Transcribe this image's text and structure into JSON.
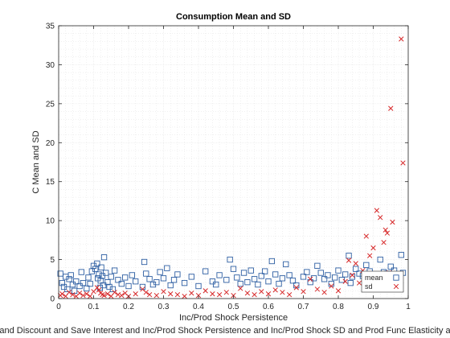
{
  "chart_data": {
    "type": "scatter",
    "title": "Consumption Mean and SD",
    "xlabel": "Inc/Prod Shock Persistence",
    "ylabel": "C Mean and SD",
    "caption": "and Discount and Save Interest and Inc/Prod Shock Persistence and Inc/Prod Shock SD and Prod Func Elasticity a",
    "xlim": [
      0,
      1
    ],
    "ylim": [
      0,
      35
    ],
    "x_ticks": [
      0,
      0.1,
      0.2,
      0.3,
      0.4,
      0.5,
      0.6,
      0.7,
      0.8,
      0.9,
      1
    ],
    "x_tick_labels": [
      "0",
      "0.1",
      "0.2",
      "0.3",
      "0.4",
      "0.5",
      "0.6",
      "0.7",
      "0.8",
      "0.9",
      "1"
    ],
    "y_ticks": [
      0,
      5,
      10,
      15,
      20,
      25,
      30,
      35
    ],
    "y_tick_labels": [
      "0",
      "5",
      "10",
      "15",
      "20",
      "25",
      "30",
      "35"
    ],
    "grid": true,
    "legend_position": "bottom-right",
    "series": [
      {
        "name": "mean",
        "marker": "square",
        "color": "#2e5fa3",
        "x": [
          0.005,
          0.01,
          0.015,
          0.02,
          0.025,
          0.03,
          0.035,
          0.04,
          0.045,
          0.05,
          0.06,
          0.065,
          0.07,
          0.08,
          0.085,
          0.09,
          0.095,
          0.1,
          0.105,
          0.11,
          0.112,
          0.115,
          0.118,
          0.12,
          0.122,
          0.125,
          0.128,
          0.13,
          0.135,
          0.14,
          0.145,
          0.15,
          0.155,
          0.16,
          0.17,
          0.18,
          0.19,
          0.2,
          0.21,
          0.22,
          0.24,
          0.245,
          0.25,
          0.26,
          0.27,
          0.28,
          0.29,
          0.3,
          0.31,
          0.32,
          0.33,
          0.34,
          0.36,
          0.38,
          0.4,
          0.42,
          0.44,
          0.45,
          0.46,
          0.48,
          0.49,
          0.5,
          0.51,
          0.52,
          0.53,
          0.54,
          0.55,
          0.56,
          0.57,
          0.58,
          0.59,
          0.6,
          0.61,
          0.62,
          0.63,
          0.64,
          0.65,
          0.66,
          0.67,
          0.68,
          0.7,
          0.71,
          0.72,
          0.73,
          0.74,
          0.75,
          0.76,
          0.77,
          0.78,
          0.79,
          0.8,
          0.81,
          0.82,
          0.83,
          0.835,
          0.84,
          0.85,
          0.86,
          0.87,
          0.88,
          0.89,
          0.9,
          0.91,
          0.92,
          0.93,
          0.94,
          0.945,
          0.95,
          0.96,
          0.98,
          0.985
        ],
        "y": [
          3.2,
          2.0,
          1.5,
          2.8,
          1.2,
          2.5,
          3.0,
          1.8,
          1.0,
          2.2,
          1.6,
          3.4,
          2.0,
          1.3,
          2.7,
          1.9,
          3.5,
          4.2,
          3.8,
          4.5,
          2.6,
          3.1,
          1.4,
          2.3,
          4.0,
          2.9,
          1.7,
          5.3,
          3.3,
          2.1,
          1.5,
          2.8,
          1.2,
          3.6,
          2.4,
          1.9,
          2.7,
          1.6,
          3.0,
          2.2,
          1.5,
          4.7,
          3.2,
          2.5,
          1.8,
          2.1,
          3.4,
          2.6,
          3.9,
          1.7,
          2.4,
          3.1,
          2.0,
          2.8,
          1.6,
          3.5,
          2.2,
          1.8,
          3.0,
          2.4,
          5.0,
          3.8,
          2.7,
          1.9,
          3.3,
          2.1,
          3.6,
          2.5,
          1.8,
          2.9,
          3.5,
          2.2,
          4.8,
          3.1,
          1.9,
          2.6,
          4.4,
          3.0,
          2.3,
          1.7,
          2.8,
          3.4,
          2.1,
          2.6,
          4.2,
          3.3,
          2.5,
          3.0,
          1.9,
          2.7,
          3.6,
          2.4,
          3.1,
          5.5,
          2.0,
          2.8,
          3.8,
          3.2,
          2.9,
          4.3,
          3.5,
          3.0,
          2.6,
          5.0,
          3.4,
          3.2,
          2.8,
          4.1,
          3.6,
          5.6,
          3.3
        ]
      },
      {
        "name": "sd",
        "marker": "x",
        "color": "#d62728",
        "x": [
          0.005,
          0.01,
          0.02,
          0.03,
          0.04,
          0.05,
          0.06,
          0.07,
          0.08,
          0.09,
          0.1,
          0.11,
          0.115,
          0.12,
          0.125,
          0.13,
          0.14,
          0.15,
          0.16,
          0.17,
          0.18,
          0.19,
          0.2,
          0.22,
          0.24,
          0.25,
          0.26,
          0.28,
          0.3,
          0.32,
          0.34,
          0.36,
          0.38,
          0.4,
          0.42,
          0.44,
          0.46,
          0.48,
          0.5,
          0.52,
          0.54,
          0.56,
          0.58,
          0.6,
          0.62,
          0.64,
          0.66,
          0.68,
          0.7,
          0.72,
          0.74,
          0.76,
          0.78,
          0.8,
          0.82,
          0.83,
          0.84,
          0.85,
          0.86,
          0.87,
          0.88,
          0.89,
          0.9,
          0.91,
          0.92,
          0.93,
          0.935,
          0.94,
          0.945,
          0.95,
          0.955,
          0.96,
          0.98,
          0.985
        ],
        "y": [
          0.4,
          0.6,
          0.3,
          0.8,
          0.5,
          0.3,
          0.7,
          0.4,
          0.6,
          0.3,
          0.9,
          1.4,
          1.1,
          0.7,
          0.5,
          0.4,
          0.6,
          0.3,
          0.8,
          0.5,
          0.4,
          0.7,
          0.3,
          0.6,
          1.2,
          0.8,
          0.5,
          0.4,
          0.9,
          0.6,
          0.5,
          0.3,
          0.7,
          0.4,
          1.0,
          0.6,
          0.5,
          0.8,
          0.4,
          1.3,
          0.7,
          0.5,
          0.9,
          0.6,
          1.1,
          0.8,
          0.5,
          1.4,
          0.9,
          2.5,
          1.2,
          0.8,
          1.6,
          1.0,
          2.2,
          4.9,
          3.0,
          4.5,
          2.0,
          3.6,
          8.0,
          5.5,
          6.5,
          11.3,
          10.4,
          7.2,
          8.8,
          8.4,
          3.3,
          24.4,
          9.8,
          3.0,
          33.3,
          17.4
        ]
      }
    ]
  }
}
